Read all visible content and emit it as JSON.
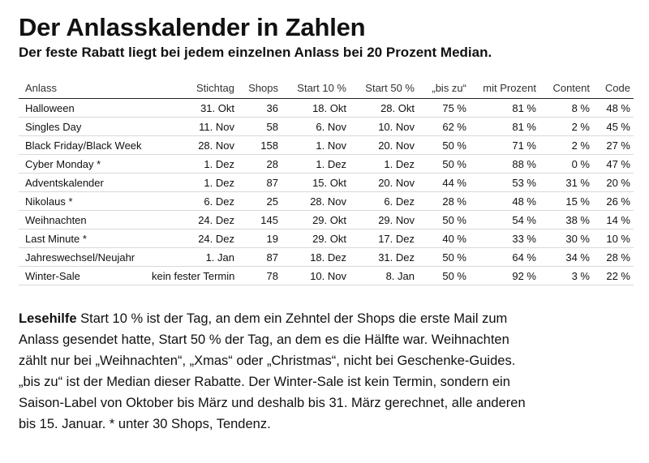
{
  "title": "Der Anlasskalender in Zahlen",
  "subtitle": "Der feste Rabatt liegt bei jedem einzelnen Anlass bei 20 Prozent Median.",
  "table": {
    "headers": [
      "Anlass",
      "Stichtag",
      "Shops",
      "Start 10 %",
      "Start 50 %",
      "„bis zu“",
      "mit Prozent",
      "Content",
      "Code"
    ],
    "rows": [
      [
        "Halloween",
        "31. Okt",
        "36",
        "18. Okt",
        "28. Okt",
        "75 %",
        "81 %",
        "8 %",
        "48 %"
      ],
      [
        "Singles Day",
        "11. Nov",
        "58",
        "6. Nov",
        "10. Nov",
        "62 %",
        "81 %",
        "2 %",
        "45 %"
      ],
      [
        "Black Friday/Black Week",
        "28. Nov",
        "158",
        "1. Nov",
        "20. Nov",
        "50 %",
        "71 %",
        "2 %",
        "27 %"
      ],
      [
        "Cyber Monday *",
        "1. Dez",
        "28",
        "1. Dez",
        "1. Dez",
        "50 %",
        "88 %",
        "0 %",
        "47 %"
      ],
      [
        "Adventskalender",
        "1. Dez",
        "87",
        "15. Okt",
        "20. Nov",
        "44 %",
        "53 %",
        "31 %",
        "20 %"
      ],
      [
        "Nikolaus *",
        "6. Dez",
        "25",
        "28. Nov",
        "6. Dez",
        "28 %",
        "48 %",
        "15 %",
        "26 %"
      ],
      [
        "Weihnachten",
        "24. Dez",
        "145",
        "29. Okt",
        "29. Nov",
        "50 %",
        "54 %",
        "38 %",
        "14 %"
      ],
      [
        "Last Minute *",
        "24. Dez",
        "19",
        "29. Okt",
        "17. Dez",
        "40 %",
        "33 %",
        "30 %",
        "10 %"
      ],
      [
        "Jahreswechsel/Neujahr",
        "1. Jan",
        "87",
        "18. Dez",
        "31. Dez",
        "50 %",
        "64 %",
        "34 %",
        "28 %"
      ],
      [
        "Winter‑Sale",
        "kein fester Termin",
        "78",
        "10. Nov",
        "8. Jan",
        "50 %",
        "92 %",
        "3 %",
        "22 %"
      ]
    ]
  },
  "reading_help": {
    "label": "Lesehilfe",
    "text": " Start 10 % ist der Tag, an dem ein Zehntel der Shops die erste Mail zum Anlass gesendet hatte, Start 50 % der Tag, an dem es die Hälfte war. Weihnachten zählt nur bei „Weihnachten“, „Xmas“ oder „Christmas“, nicht bei Geschenke-Guides. „bis zu“ ist der Median dieser Rabatte. Der Winter-Sale ist kein Termin, sondern ein Saison-Label von Oktober bis März und deshalb bis 31. März gerechnet, alle anderen bis 15. Januar. * unter 30 Shops, Tendenz."
  }
}
